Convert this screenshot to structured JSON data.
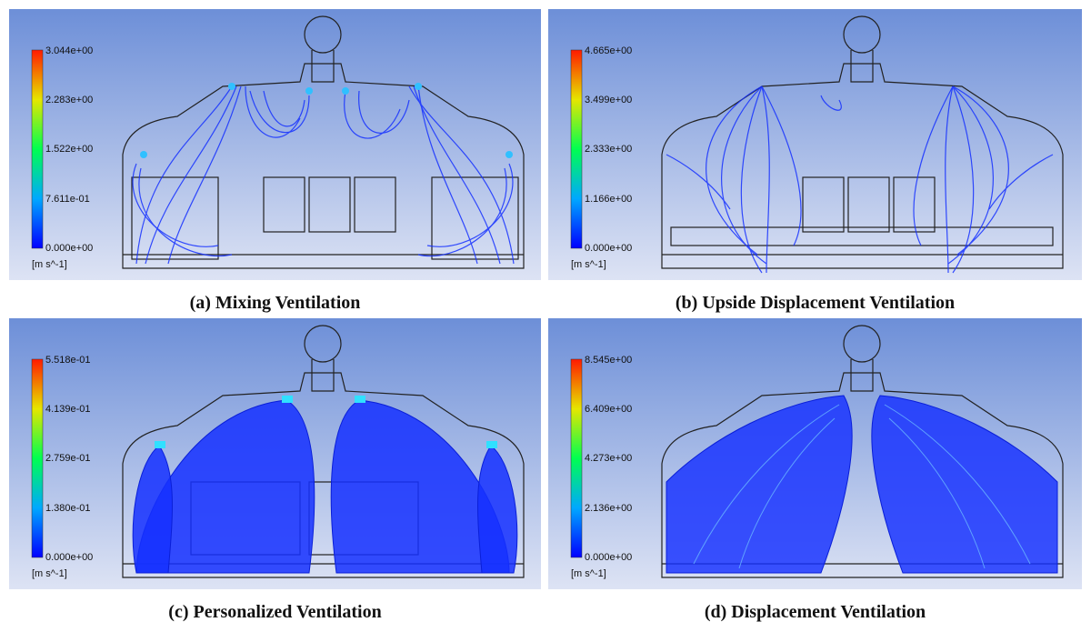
{
  "figures": [
    {
      "id": "a",
      "caption": "(a) Mixing Ventilation",
      "legend": {
        "unit": "[m s^-1]",
        "ticks": [
          "3.044e+00",
          "2.283e+00",
          "1.522e+00",
          "7.611e-01",
          "0.000e+00"
        ]
      }
    },
    {
      "id": "b",
      "caption": "(b) Upside Displacement Ventilation",
      "legend": {
        "unit": "[m s^-1]",
        "ticks": [
          "4.665e+00",
          "3.499e+00",
          "2.333e+00",
          "1.166e+00",
          "0.000e+00"
        ]
      }
    },
    {
      "id": "c",
      "caption": "(c) Personalized Ventilation",
      "legend": {
        "unit": "[m s^-1]",
        "ticks": [
          "5.518e-01",
          "4.139e-01",
          "2.759e-01",
          "1.380e-01",
          "0.000e+00"
        ]
      }
    },
    {
      "id": "d",
      "caption": "(d) Displacement Ventilation",
      "legend": {
        "unit": "[m s^-1]",
        "ticks": [
          "8.545e+00",
          "6.409e+00",
          "4.273e+00",
          "2.136e+00",
          "0.000e+00"
        ]
      }
    }
  ],
  "colors": {
    "background_top": "#6d8fd8",
    "background_bottom": "#d6def4",
    "streamline": "#1530ff"
  }
}
